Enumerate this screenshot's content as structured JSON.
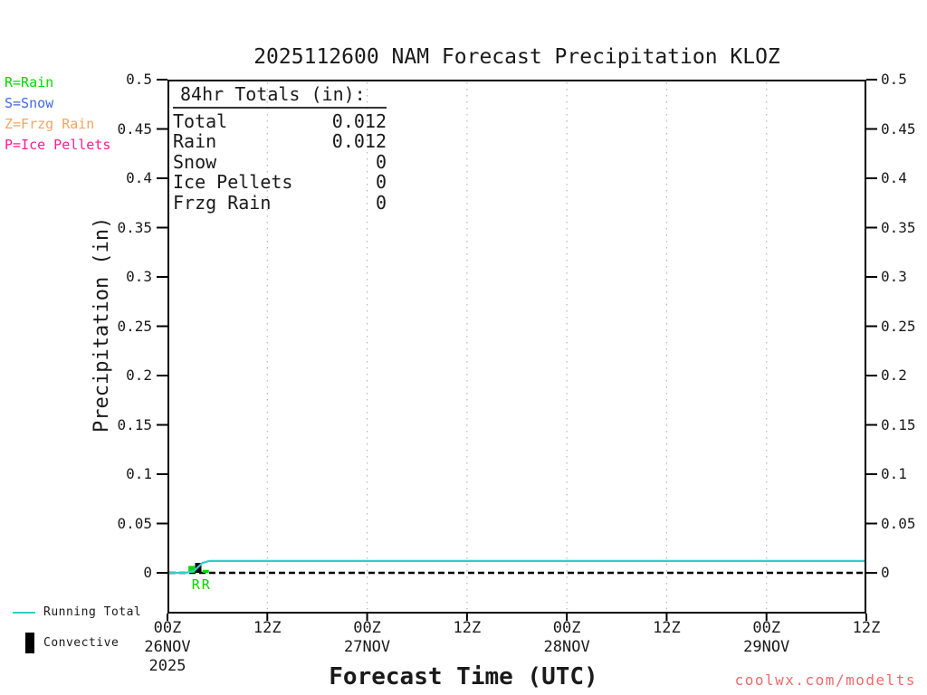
{
  "title": "2025112600 NAM Forecast Precipitation KLOZ",
  "watermark": "coolwx.com/modelts",
  "colors": {
    "rain": "#00D800",
    "snow": "#4169E1",
    "frzg_rain": "#F4A460",
    "ice_pellets": "#FF1C93",
    "running_total": "#33CCCC",
    "convective": "#000000",
    "grid": "#B5B5B5",
    "watermark": "#F06A6A",
    "text": "#1A1A1A"
  },
  "type_legend": [
    {
      "label": "R=Rain",
      "color": "#00D800"
    },
    {
      "label": "S=Snow",
      "color": "#4169E1"
    },
    {
      "label": "Z=Frzg Rain",
      "color": "#F4A460"
    },
    {
      "label": "P=Ice Pellets",
      "color": "#FF1C93"
    }
  ],
  "totals_box": {
    "heading": "84hr Totals (in):",
    "rows": [
      {
        "label": "Total",
        "value": "0.012"
      },
      {
        "label": "Rain",
        "value": "0.012"
      },
      {
        "label": "Snow",
        "value": "0"
      },
      {
        "label": "Ice Pellets",
        "value": "0"
      },
      {
        "label": "Frzg Rain",
        "value": "0"
      }
    ]
  },
  "y_axis": {
    "label": "Precipitation (in)"
  },
  "x_axis": {
    "label": "Forecast Time (UTC)"
  },
  "series_legend": {
    "running_total": {
      "label": "Running Total",
      "color": "#33CCCC"
    },
    "convective": {
      "label": "Convective",
      "color": "#000000"
    }
  },
  "chart_data": {
    "type": "line",
    "title": "2025112600 NAM Forecast Precipitation KLOZ",
    "xlabel": "Forecast Time (UTC)",
    "ylabel": "Precipitation (in)",
    "ylim": [
      0,
      0.5
    ],
    "x_range_hours": [
      0,
      84
    ],
    "y_tick_values": [
      0,
      0.05,
      0.1,
      0.15,
      0.2,
      0.25,
      0.3,
      0.35,
      0.4,
      0.45,
      0.5
    ],
    "y_tick_labels": [
      "0",
      "0.05",
      "0.1",
      "0.15",
      "0.2",
      "0.25",
      "0.3",
      "0.35",
      "0.4",
      "0.45",
      "0.5"
    ],
    "grid_hours": [
      12,
      24,
      36,
      48,
      60,
      72
    ],
    "x_ticks": [
      {
        "hour": 0,
        "label": "00Z",
        "date": "26NOV",
        "year": "2025"
      },
      {
        "hour": 12,
        "label": "12Z"
      },
      {
        "hour": 24,
        "label": "00Z",
        "date": "27NOV"
      },
      {
        "hour": 36,
        "label": "12Z"
      },
      {
        "hour": 48,
        "label": "00Z",
        "date": "28NOV"
      },
      {
        "hour": 60,
        "label": "12Z"
      },
      {
        "hour": 72,
        "label": "00Z",
        "date": "29NOV"
      },
      {
        "hour": 84,
        "label": "12Z"
      }
    ],
    "series": [
      {
        "name": "Running Total",
        "type": "line",
        "color": "#33CCCC",
        "points": [
          [
            0,
            0
          ],
          [
            2.2,
            0
          ],
          [
            3.2,
            0.002
          ],
          [
            4.2,
            0.01
          ],
          [
            5,
            0.012
          ],
          [
            84,
            0.012
          ]
        ]
      },
      {
        "name": "Rain",
        "type": "bar",
        "color": "#00D800",
        "bars": [
          {
            "hour": 2.9,
            "value": 0.007
          },
          {
            "hour": 4.6,
            "value": 0.003
          }
        ]
      },
      {
        "name": "Convective",
        "type": "bar",
        "color": "#000000",
        "bars": [
          {
            "hour": 3.7,
            "value": 0.01
          }
        ]
      }
    ],
    "point_labels": [
      {
        "hour": 3.4,
        "text": "R",
        "color": "#00D800"
      },
      {
        "hour": 4.6,
        "text": "R",
        "color": "#00D800"
      }
    ],
    "totals_84hr": {
      "total": 0.012,
      "rain": 0.012,
      "snow": 0,
      "ice_pellets": 0,
      "frzg_rain": 0
    }
  }
}
